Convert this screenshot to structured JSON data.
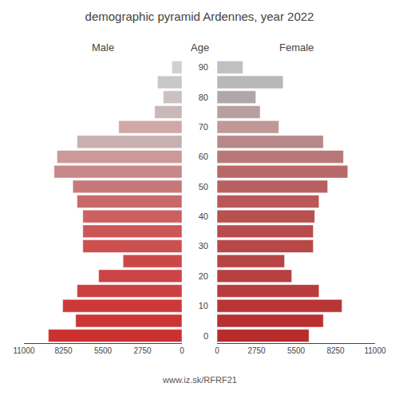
{
  "chart_data": {
    "type": "bar",
    "orientation": "horizontal",
    "title": "demographic pyramid Ardennes, year 2022",
    "ylabel": "Age",
    "categories": [
      0,
      null,
      10,
      null,
      20,
      null,
      30,
      null,
      40,
      null,
      50,
      null,
      60,
      null,
      70,
      null,
      80,
      null,
      90
    ],
    "series": [
      {
        "name": "Male",
        "values": [
          9300,
          7400,
          8300,
          7300,
          5800,
          4100,
          6900,
          6900,
          6900,
          7300,
          7600,
          8900,
          8700,
          7300,
          4400,
          1900,
          1300,
          1700,
          700
        ],
        "colors": [
          "#cd3030",
          "#cd3535",
          "#cd3838",
          "#cc4040",
          "#cc4545",
          "#cc4848",
          "#cc5050",
          "#cc5555",
          "#cc6060",
          "#c86868",
          "#c87878",
          "#c88888",
          "#cc9898",
          "#c8b0b0",
          "#d0a8a8",
          "#c8b8b8",
          "#ccc0c0",
          "#c8c8c8",
          "#d0d0d0"
        ]
      },
      {
        "name": "Female",
        "values": [
          6400,
          7400,
          8700,
          7100,
          5200,
          4700,
          6700,
          6700,
          6800,
          7100,
          7700,
          9100,
          8800,
          7400,
          4300,
          3000,
          2700,
          4600,
          1800
        ],
        "colors": [
          "#b82c2c",
          "#b83030",
          "#b83535",
          "#b83c3c",
          "#b84040",
          "#b84545",
          "#b84848",
          "#b84c4c",
          "#b85050",
          "#b85858",
          "#b86060",
          "#b86868",
          "#b87878",
          "#b88888",
          "#c09898",
          "#b8a0a0",
          "#b0a8a8",
          "#b8b8b8",
          "#c0c0c0"
        ]
      }
    ],
    "xlim": [
      0,
      11000
    ],
    "xticks": [
      0,
      2750,
      5500,
      8250,
      11000
    ],
    "grid": false,
    "annotations": [
      "www.iz.sk/RFRF21"
    ]
  }
}
